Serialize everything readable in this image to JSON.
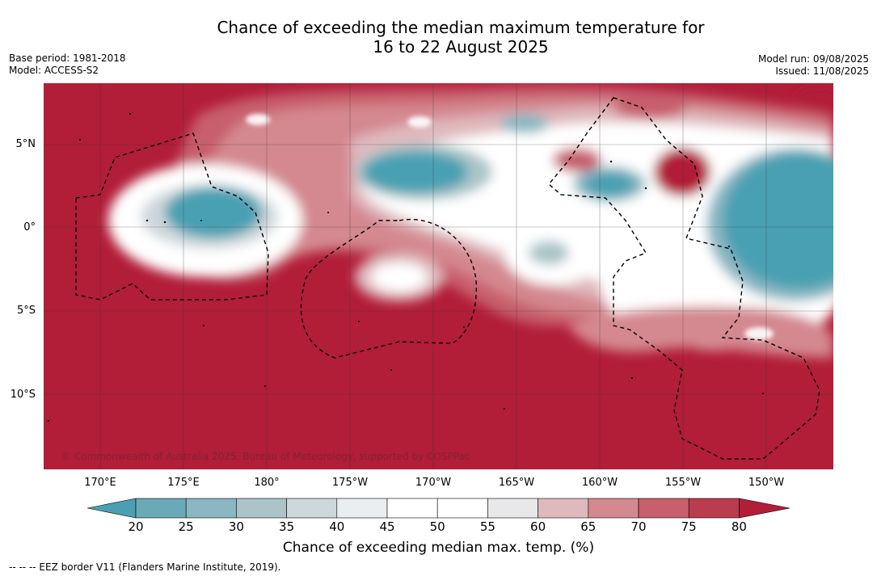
{
  "header": {
    "title_line1": "Chance of exceeding the median maximum temperature for",
    "title_line2": "16 to 22 August 2025",
    "base_period": "Base period: 1981-2018",
    "model": "Model: ACCESS-S2",
    "model_run": "Model run: 09/08/2025",
    "issued": "Issued: 11/08/2025"
  },
  "map": {
    "copyright": "© Commonwealth of Australia 2025, Bureau of Meteorology, supported by COSPPac",
    "lat_labels": [
      "5°N",
      "0°",
      "5°S",
      "10°S"
    ],
    "lon_labels": [
      "170°E",
      "175°E",
      "180°",
      "175°W",
      "170°W",
      "165°W",
      "160°W",
      "155°W",
      "150°W"
    ]
  },
  "colorbar": {
    "ticks": [
      "20",
      "25",
      "30",
      "35",
      "40",
      "45",
      "50",
      "55",
      "60",
      "65",
      "70",
      "75",
      "80"
    ],
    "colors": [
      "#4aa0b2",
      "#6aa9b8",
      "#8bb7c3",
      "#aac4c8",
      "#ced7da",
      "#eaeef0",
      "#ffffff",
      "#ffffff",
      "#e8e8ea",
      "#dfb9be",
      "#d48890",
      "#c75f6c",
      "#b93c4f",
      "#b21d38"
    ],
    "label": "Chance of exceeding median max. temp. (%)"
  },
  "footer": {
    "eez": "--  --  -- EEZ border V11 (Flanders Marine Institute, 2019)."
  }
}
